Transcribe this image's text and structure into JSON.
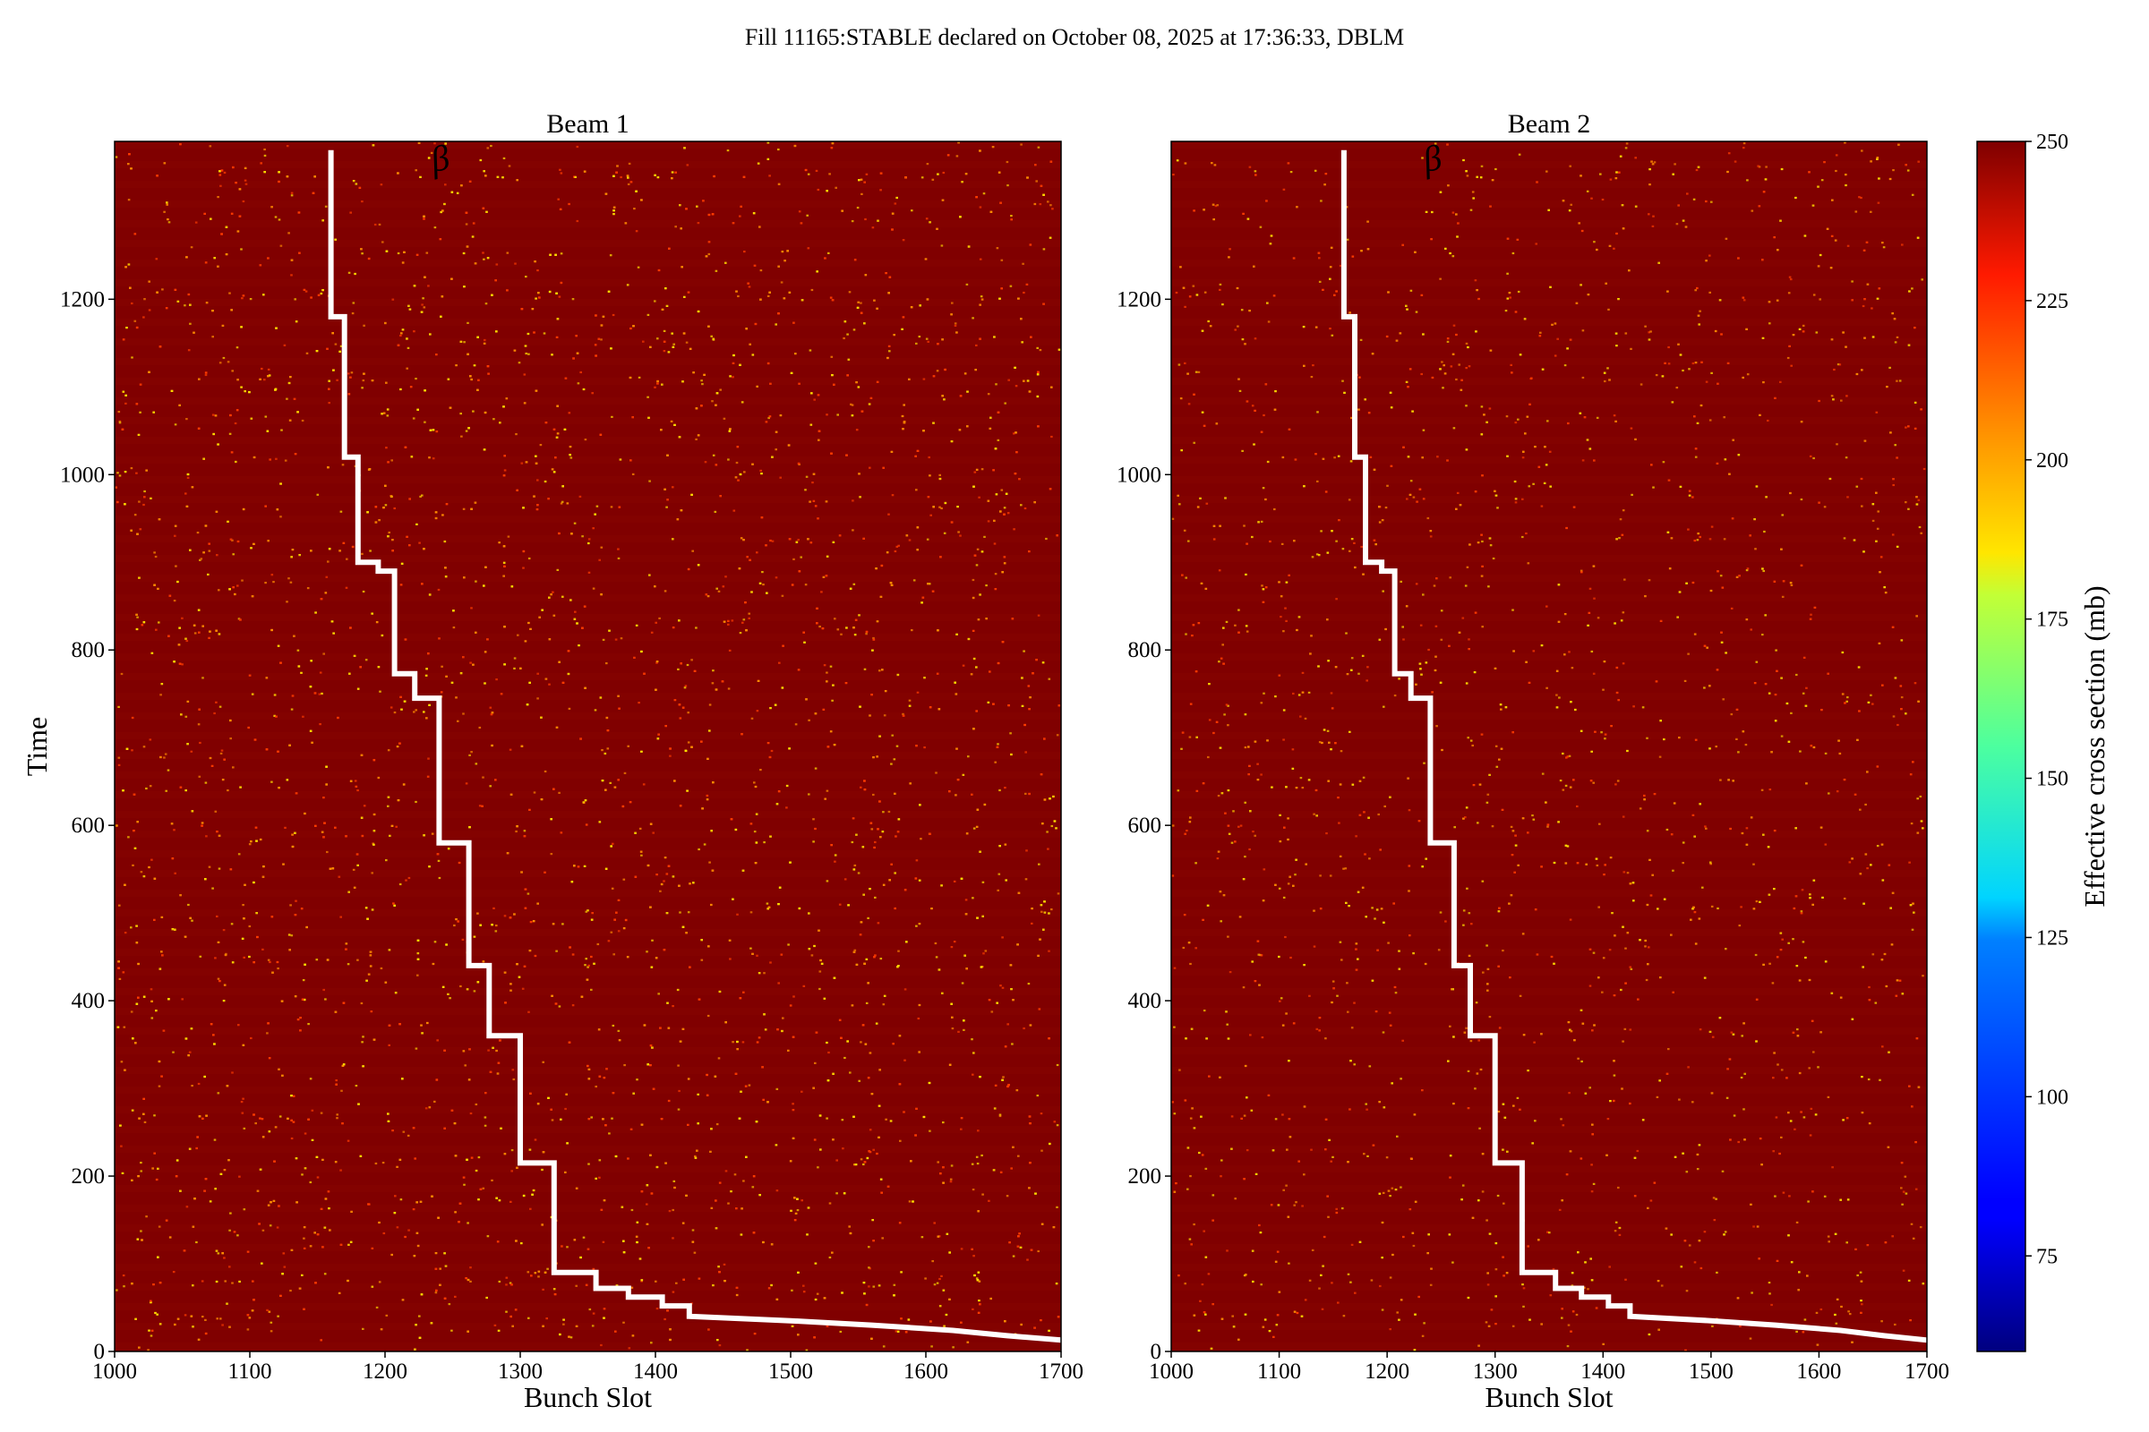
{
  "suptitle": "Fill 11165:STABLE declared on October 08, 2025 at 17:36:33, DBLM",
  "colorbar": {
    "label": "Effective cross section (mb)",
    "range": [
      60,
      250
    ],
    "ticks": [
      75,
      100,
      125,
      150,
      175,
      200,
      225,
      250
    ],
    "colormap": "jet"
  },
  "annotation_text": "β",
  "chart_data": [
    {
      "type": "heatmap",
      "title": "Beam 1",
      "xlabel": "Bunch Slot",
      "ylabel": "Time",
      "xlim": [
        1000,
        1700
      ],
      "ylim": [
        0,
        1380
      ],
      "xticks": [
        1000,
        1100,
        1200,
        1300,
        1400,
        1500,
        1600,
        1700
      ],
      "yticks": [
        0,
        200,
        400,
        600,
        800,
        1000,
        1200
      ],
      "background_value": 250,
      "speckle_values": [
        185,
        200,
        215
      ],
      "speckle_density": "high",
      "overlay_step_curve": {
        "color": "#ffffff",
        "points": [
          [
            1160,
            1370
          ],
          [
            1160,
            1180
          ],
          [
            1170,
            1180
          ],
          [
            1170,
            1020
          ],
          [
            1180,
            1020
          ],
          [
            1180,
            900
          ],
          [
            1195,
            900
          ],
          [
            1195,
            890
          ],
          [
            1207,
            890
          ],
          [
            1207,
            773
          ],
          [
            1222,
            773
          ],
          [
            1222,
            745
          ],
          [
            1240,
            745
          ],
          [
            1240,
            580
          ],
          [
            1262,
            580
          ],
          [
            1262,
            440
          ],
          [
            1277,
            440
          ],
          [
            1277,
            360
          ],
          [
            1300,
            360
          ],
          [
            1300,
            215
          ],
          [
            1325,
            215
          ],
          [
            1325,
            90
          ],
          [
            1356,
            90
          ],
          [
            1356,
            72
          ],
          [
            1380,
            72
          ],
          [
            1380,
            62
          ],
          [
            1405,
            62
          ],
          [
            1405,
            52
          ],
          [
            1425,
            52
          ],
          [
            1425,
            40
          ],
          [
            1500,
            35
          ],
          [
            1560,
            30
          ],
          [
            1620,
            24
          ],
          [
            1660,
            18
          ],
          [
            1700,
            13
          ]
        ]
      }
    },
    {
      "type": "heatmap",
      "title": "Beam 2",
      "xlabel": "Bunch Slot",
      "ylabel": "",
      "xlim": [
        1000,
        1700
      ],
      "ylim": [
        0,
        1380
      ],
      "xticks": [
        1000,
        1100,
        1200,
        1300,
        1400,
        1500,
        1600,
        1700
      ],
      "yticks": [
        0,
        200,
        400,
        600,
        800,
        1000,
        1200
      ],
      "background_value": 250,
      "speckle_values": [
        185,
        200,
        215
      ],
      "speckle_density": "low",
      "overlay_step_curve": {
        "color": "#ffffff",
        "points": [
          [
            1160,
            1370
          ],
          [
            1160,
            1180
          ],
          [
            1170,
            1180
          ],
          [
            1170,
            1020
          ],
          [
            1180,
            1020
          ],
          [
            1180,
            900
          ],
          [
            1195,
            900
          ],
          [
            1195,
            890
          ],
          [
            1207,
            890
          ],
          [
            1207,
            773
          ],
          [
            1222,
            773
          ],
          [
            1222,
            745
          ],
          [
            1240,
            745
          ],
          [
            1240,
            580
          ],
          [
            1262,
            580
          ],
          [
            1262,
            440
          ],
          [
            1277,
            440
          ],
          [
            1277,
            360
          ],
          [
            1300,
            360
          ],
          [
            1300,
            215
          ],
          [
            1325,
            215
          ],
          [
            1325,
            90
          ],
          [
            1356,
            90
          ],
          [
            1356,
            72
          ],
          [
            1380,
            72
          ],
          [
            1380,
            62
          ],
          [
            1405,
            62
          ],
          [
            1405,
            52
          ],
          [
            1425,
            52
          ],
          [
            1425,
            40
          ],
          [
            1500,
            35
          ],
          [
            1560,
            30
          ],
          [
            1620,
            24
          ],
          [
            1660,
            18
          ],
          [
            1700,
            13
          ]
        ]
      }
    }
  ]
}
